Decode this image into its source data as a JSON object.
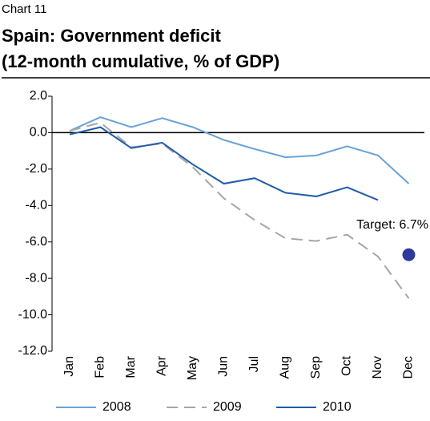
{
  "chart_data": {
    "type": "line",
    "label": "Chart 11",
    "title": "Spain: Government deficit",
    "subtitle": "(12-month cumulative, % of GDP)",
    "categories": [
      "Jan",
      "Feb",
      "Mar",
      "Apr",
      "May",
      "Jun",
      "Jul",
      "Aug",
      "Sep",
      "Oct",
      "Nov",
      "Dec"
    ],
    "series": [
      {
        "name": "2008",
        "color": "#6aa3d8",
        "dash": false,
        "values": [
          0.1,
          0.85,
          0.3,
          0.8,
          0.3,
          -0.4,
          -0.9,
          -1.35,
          -1.25,
          -0.75,
          -1.25,
          -2.8
        ]
      },
      {
        "name": "2009",
        "color": "#a6a6a6",
        "dash": true,
        "values": [
          0.1,
          0.55,
          -0.8,
          -0.6,
          -1.9,
          -3.6,
          -4.8,
          -5.8,
          -5.95,
          -5.6,
          -6.8,
          -9.1
        ]
      },
      {
        "name": "2010",
        "color": "#1f5ca8",
        "dash": false,
        "values": [
          -0.1,
          0.3,
          -0.85,
          -0.55,
          -1.75,
          -2.8,
          -2.5,
          -3.3,
          -3.5,
          -3.0,
          -3.7,
          null
        ]
      }
    ],
    "target": {
      "label": "Target: 6.7%",
      "value": -6.7,
      "color": "#2e3a9c"
    },
    "ylim": [
      -12,
      2
    ],
    "yticks": [
      {
        "value": 2,
        "label": "2.0"
      },
      {
        "value": 0,
        "label": "0.0"
      },
      {
        "value": -2,
        "label": "-2.0"
      },
      {
        "value": -4,
        "label": "-4.0"
      },
      {
        "value": -6,
        "label": "-6.0"
      },
      {
        "value": -8,
        "label": "-8.0"
      },
      {
        "value": -10,
        "label": "-10.0"
      },
      {
        "value": -12,
        "label": "-12.0"
      }
    ],
    "grid": false
  }
}
